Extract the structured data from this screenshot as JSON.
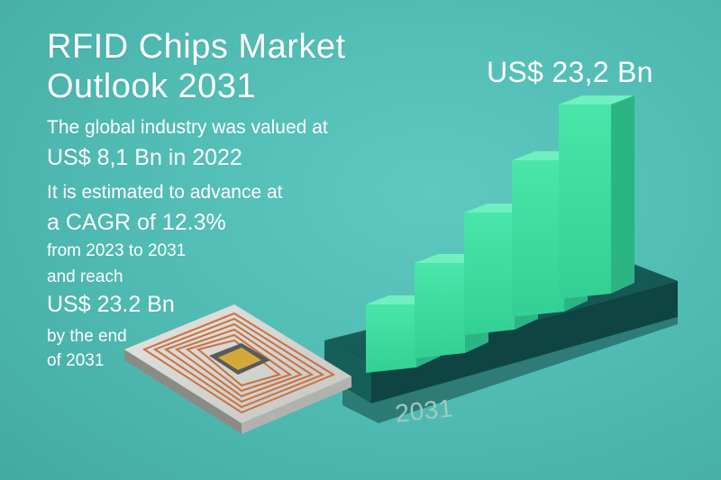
{
  "headline": {
    "title": "RFID Chips Market Outlook 2031",
    "forecast_value": "US$ 23,2 Bn"
  },
  "summary": {
    "line1": "The global industry was valued at",
    "line2": "US$ 8,1 Bn in 2022",
    "line3": "It is estimated to advance at",
    "line4": "a CAGR of 12.3%",
    "line5": "from 2023 to 2031",
    "line6": "and reach",
    "line7": "US$ 23.2 Bn",
    "line8": "by the end",
    "line9": "of 2031"
  },
  "graphic": {
    "base_year_label": "2031",
    "colors": {
      "background": "#4fbab2",
      "bar_front": "#3ed9a0",
      "bar_top": "#6ff0c0",
      "bar_side": "#2bb585",
      "platform": "#13524f",
      "chip_coil": "#c9713f",
      "chip_die": "#d4a93c"
    }
  }
}
